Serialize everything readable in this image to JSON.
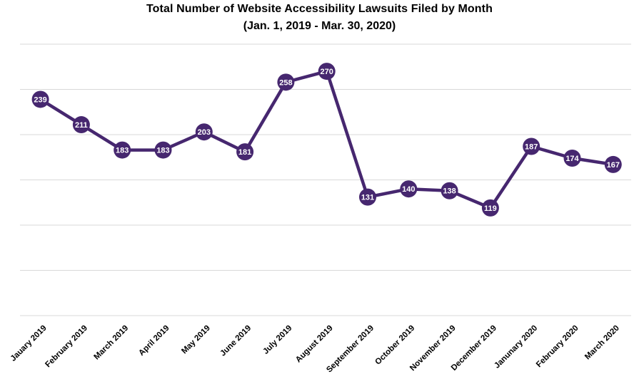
{
  "chart_data": {
    "type": "line",
    "title": "Total Number of Website Accessibility Lawsuits Filed by Month",
    "subtitle": "(Jan. 1, 2019 - Mar. 30, 2020)",
    "categories": [
      "Jauary 2019",
      "February 2019",
      "March 2019",
      "April 2019",
      "May 2019",
      "June 2019",
      "July 2019",
      "August 2019",
      "September 2019",
      "October 2019",
      "November 2019",
      "December 2019",
      "Janunary 2020",
      "February 2020",
      "March 2020"
    ],
    "values": [
      239,
      211,
      183,
      183,
      203,
      181,
      258,
      270,
      131,
      140,
      138,
      119,
      187,
      174,
      167
    ],
    "data_labels": "on",
    "ylim": [
      0,
      300
    ],
    "gridline_step": 50,
    "y_tick_labels": "none",
    "legend": "none",
    "grid": "horizontal",
    "x_label_rotation_deg": 45,
    "colors": {
      "line": "#46276F",
      "marker": "#46276F",
      "data_label_text": "#FFFFFF",
      "gridline": "#D9D9D9",
      "title_text": "#000000",
      "axis_label_text": "#000000",
      "background": "#FFFFFF"
    }
  }
}
